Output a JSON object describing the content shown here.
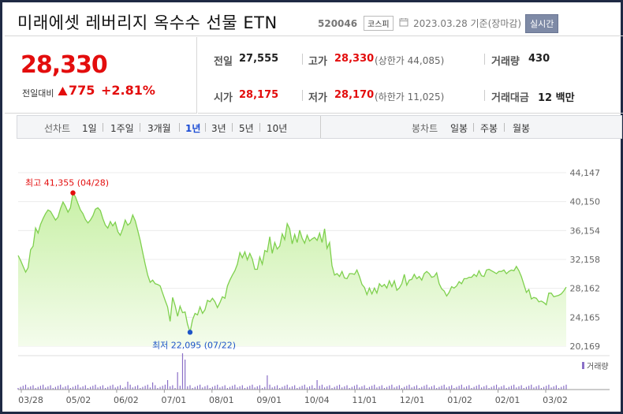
{
  "header": {
    "title": "미래에셋 레버리지 옥수수 선물 ETN",
    "code": "520046",
    "market_badge": "코스피",
    "date_text": "2023.03.28 기준(장마감)",
    "realtime_label": "실시간"
  },
  "quote": {
    "price": "28,330",
    "change_label": "전일대비",
    "change": "775",
    "change_pct": "+2.81%"
  },
  "stats": {
    "prev_close_label": "전일",
    "prev_close": "27,555",
    "high_label": "고가",
    "high": "28,330",
    "upper_limit": "(상한가 44,085)",
    "volume_label": "거래량",
    "volume": "430",
    "open_label": "시가",
    "open": "28,175",
    "low_label": "저가",
    "low": "28,170",
    "lower_limit": "(하한가 11,025)",
    "amount_label": "거래대금",
    "amount": "12 백만"
  },
  "period_bar": {
    "line_label": "선차트",
    "line_items": [
      "1일",
      "1주일",
      "3개월",
      "1년",
      "3년",
      "5년",
      "10년"
    ],
    "active": "1년",
    "candle_label": "봉차트",
    "candle_items": [
      "일봉",
      "주봉",
      "월봉"
    ]
  },
  "chart_data": {
    "type": "area",
    "y_ticks": [
      "44,147",
      "40,150",
      "36,154",
      "32,158",
      "28,162",
      "24,165",
      "20,169"
    ],
    "ylim": [
      20169,
      44147
    ],
    "x_ticks": [
      "03/28",
      "05/02",
      "06/02",
      "07/01",
      "08/01",
      "09/01",
      "10/04",
      "11/01",
      "12/01",
      "01/02",
      "02/01",
      "03/02"
    ],
    "high_annotation": "최고 41,355 (04/28)",
    "low_annotation": "최저 22,095 (07/22)",
    "volume_legend": "거래량",
    "series": [
      {
        "values": [
          32700,
          32000,
          31200,
          30400,
          31000,
          33500,
          34000,
          36500,
          35800,
          37000,
          37800,
          38500,
          39000,
          38800,
          38200,
          37600,
          38000,
          39200,
          40100,
          39500,
          38700,
          39300,
          41355,
          40800,
          39900,
          39000,
          38500,
          37700,
          37200,
          37600,
          38200,
          39100,
          39300,
          38900,
          37800,
          36900,
          36500,
          37400,
          36800,
          37300,
          36000,
          35500,
          36400,
          37600,
          36900,
          37200,
          38300,
          37500,
          36200,
          34800,
          33100,
          31500,
          30000,
          29000,
          29300,
          28800,
          28700,
          28500,
          27500,
          26500,
          25600,
          23600,
          26900,
          25800,
          24300,
          25700,
          24800,
          24900,
          23200,
          22095,
          23800,
          24700,
          24500,
          25600,
          24700,
          25200,
          26500,
          26300,
          26800,
          26300,
          25500,
          26200,
          27000,
          26800,
          28500,
          29300,
          30000,
          30600,
          31500,
          33100,
          32400,
          33200,
          32100,
          33000,
          32200,
          30800,
          30800,
          32500,
          31500,
          33400,
          33200,
          35300,
          33000,
          34500,
          33600,
          34000,
          35700,
          34900,
          37100,
          36400,
          34300,
          35600,
          34500,
          36200,
          35100,
          34400,
          35500,
          34700,
          35000,
          35200,
          34800,
          35800,
          34500,
          36400,
          33700,
          34500,
          31300,
          30000,
          30200,
          29800,
          30500,
          29600,
          29500,
          30200,
          30200,
          30100,
          30700,
          29800,
          28700,
          28300,
          27300,
          28200,
          27400,
          28200,
          27500,
          28800,
          28400,
          28700,
          28200,
          29200,
          28400,
          29200,
          27900,
          28200,
          28800,
          30100,
          28600,
          29300,
          29400,
          30100,
          29500,
          29800,
          29300,
          30200,
          30500,
          30200,
          29700,
          29800,
          30300,
          28800,
          28100,
          27800,
          27100,
          27600,
          28400,
          28200,
          28500,
          29100,
          28800,
          29500,
          29500,
          29700,
          29700,
          30100,
          29800,
          30600,
          29900,
          29800,
          30700,
          30800,
          30600,
          30400,
          30200,
          30500,
          30500,
          30700,
          30200,
          30500,
          30700,
          30600,
          31200,
          30600,
          29800,
          28700,
          27600,
          28000,
          26700,
          26900,
          26800,
          26300,
          26400,
          26200,
          25900,
          27500,
          27500,
          27000,
          27100,
          27200,
          27400,
          27800,
          28330
        ]
      }
    ]
  },
  "colors": {
    "accent_red": "#e30d0d",
    "line_green": "#7fd04e",
    "area_top": "#c8f0a6",
    "area_bottom": "#f4fcec",
    "low_marker": "#1e55c8",
    "volume_bar": "#8a6fc7"
  }
}
